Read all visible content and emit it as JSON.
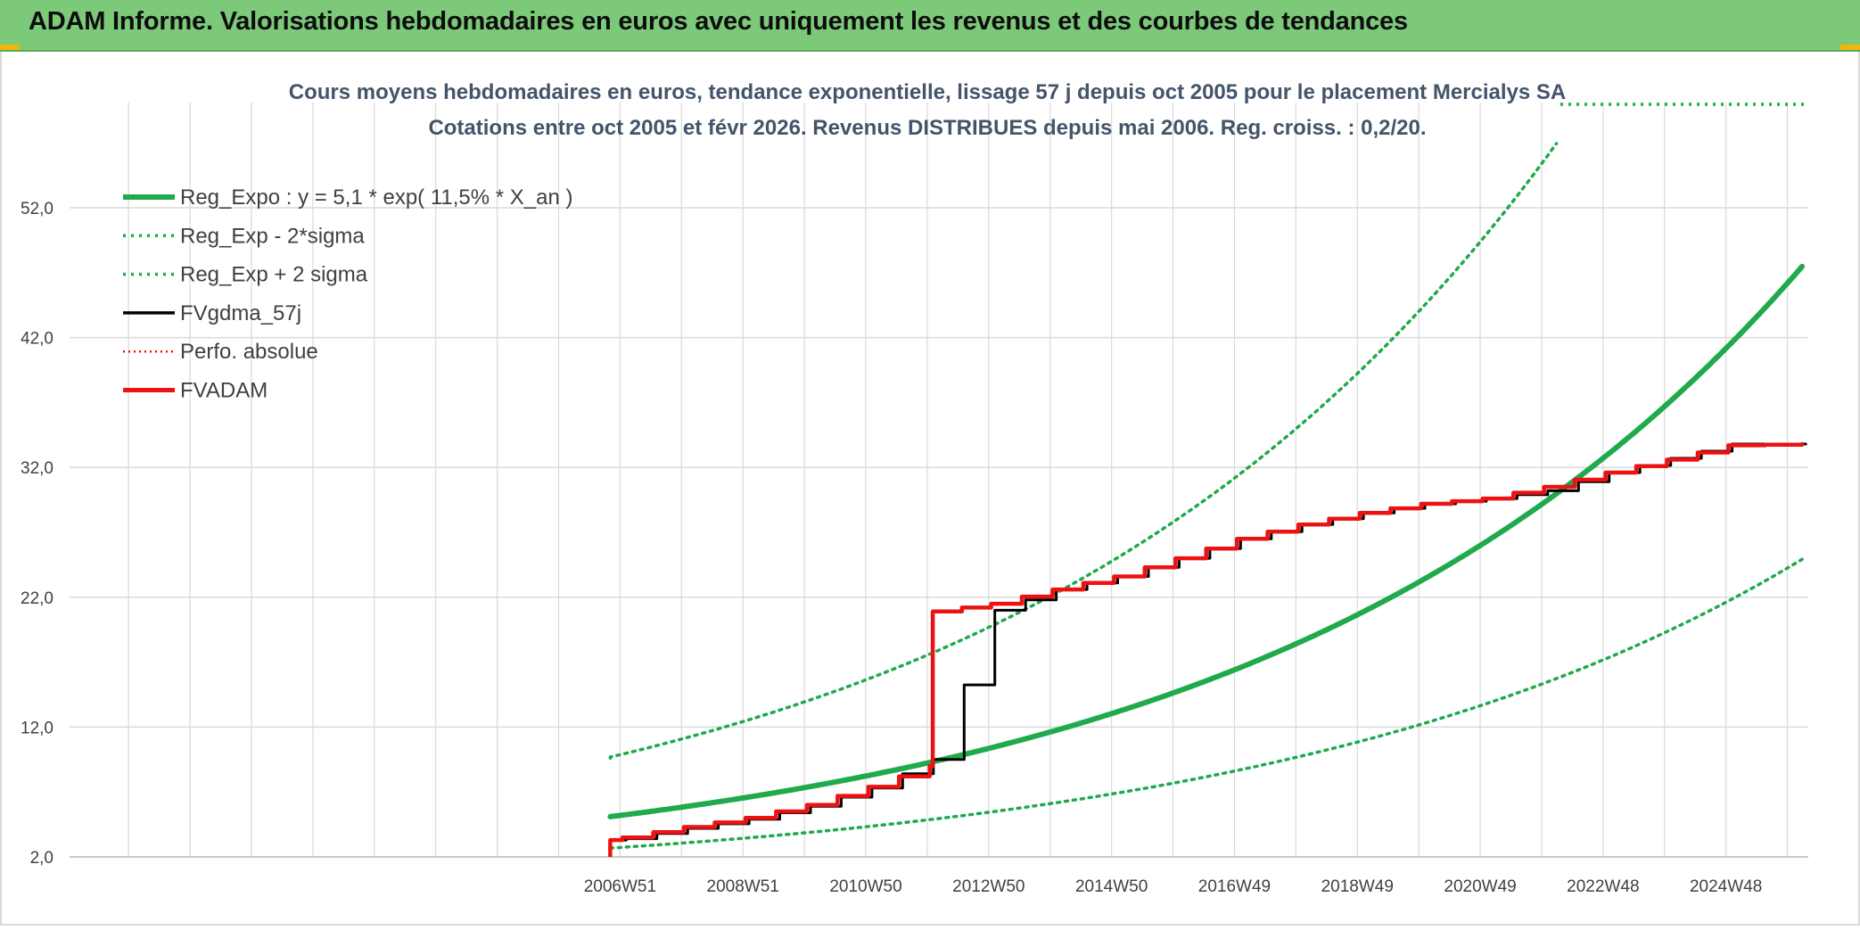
{
  "banner": {
    "title": "ADAM Informe. Valorisations hebdomadaires en euros avec uniquement les revenus et des courbes de tendances"
  },
  "colors": {
    "banner_bg": "#7cc97a",
    "reg_green": "#1faa4b",
    "fv_black": "#000000",
    "fvadam_red": "#ee1111",
    "grid": "#d9d9d9",
    "axis_text": "#404040",
    "title_text": "#44546a"
  },
  "chart_data": {
    "type": "line",
    "title": "Cours moyens hebdomadaires en euros, tendance exponentielle, lissage 57 j depuis oct 2005 pour le placement Mercialys SA",
    "subtitle": "Cotations entre oct 2005 et févr 2026. Revenus DISTRIBUES depuis mai 2006. Reg. croiss. : 0,2/20.",
    "xlabel": "",
    "ylabel": "",
    "ylim": [
      2.0,
      57.0
    ],
    "yticks": [
      "2,0",
      "12,0",
      "22,0",
      "32,0",
      "42,0",
      "52,0"
    ],
    "ytick_values": [
      2,
      12,
      22,
      32,
      42,
      52
    ],
    "xticks": [
      "2006W51",
      "2008W51",
      "2010W50",
      "2012W50",
      "2014W50",
      "2016W49",
      "2018W49",
      "2020W49",
      "2022W48",
      "2024W48"
    ],
    "xtick_values": [
      2006.96,
      2008.96,
      2010.96,
      2012.96,
      2014.96,
      2016.96,
      2018.96,
      2020.96,
      2022.96,
      2024.96
    ],
    "xlim": [
      1998.0,
      2026.3
    ],
    "grid": true,
    "legend_position": "top-left",
    "legend": [
      {
        "label": "Reg_Expo : y = 5,1 * exp( 11,5% *  X_an )",
        "style": "solid-thick-green"
      },
      {
        "label": "Reg_Exp - 2*sigma",
        "style": "dotted-green"
      },
      {
        "label": "Reg_Exp + 2 sigma",
        "style": "dotted-green"
      },
      {
        "label": "FVgdma_57j",
        "style": "solid-black"
      },
      {
        "label": "Perfo. absolue",
        "style": "dotted-red"
      },
      {
        "label": "FVADAM",
        "style": "solid-red"
      }
    ],
    "series": [
      {
        "name": "Reg_Expo : y = 5,1 * exp( 11,5% *  X_an )",
        "x": [
          2006.8,
          2008.0,
          2010.0,
          2012.0,
          2014.0,
          2016.0,
          2018.0,
          2020.0,
          2022.0,
          2024.0,
          2026.2
        ],
        "values": [
          5.1,
          5.8,
          7.3,
          9.2,
          11.6,
          14.6,
          18.4,
          23.2,
          29.2,
          36.8,
          53.8
        ]
      },
      {
        "name": "Reg_Exp - 2*sigma",
        "x": [
          2006.8,
          2008.0,
          2010.0,
          2012.0,
          2014.0,
          2016.0,
          2018.0,
          2020.0,
          2022.0,
          2024.0,
          2026.2
        ],
        "values": [
          2.7,
          3.1,
          3.9,
          5.0,
          6.3,
          8.0,
          10.2,
          12.9,
          16.4,
          20.9,
          28.2
        ]
      },
      {
        "name": "Reg_Exp + 2 sigma",
        "x": [
          2006.8,
          2008.0,
          2010.0,
          2011.0,
          2012.0,
          2013.0,
          2014.0,
          2015.0,
          2016.0,
          2017.0,
          2018.0,
          2019.0,
          2019.8
        ],
        "values": [
          9.6,
          11.0,
          13.9,
          15.6,
          17.5,
          19.6,
          22.0,
          24.7,
          27.8,
          31.2,
          35.1,
          39.4,
          57.0
        ]
      },
      {
        "name": "FVgdma_57j",
        "x": [
          2006.8,
          2007.0,
          2008.0,
          2009.0,
          2010.0,
          2011.0,
          2012.0,
          2013.0,
          2014.0,
          2015.0,
          2016.0,
          2017.0,
          2018.0,
          2019.0,
          2020.0,
          2021.0,
          2022.0,
          2023.0,
          2024.0,
          2025.0,
          2026.2
        ],
        "values": [
          3.3,
          3.4,
          4.2,
          4.9,
          5.9,
          7.3,
          9.5,
          21.0,
          22.6,
          23.6,
          25.0,
          26.5,
          27.6,
          28.5,
          29.2,
          29.6,
          30.2,
          31.6,
          32.7,
          33.8,
          33.8
        ]
      },
      {
        "name": "Perfo. absolue",
        "x": [],
        "values": []
      },
      {
        "name": "FVADAM",
        "x": [
          2006.8,
          2007.0,
          2008.0,
          2009.0,
          2010.0,
          2011.0,
          2012.0,
          2012.05,
          2013.0,
          2014.0,
          2015.0,
          2016.0,
          2017.0,
          2018.0,
          2019.0,
          2020.0,
          2021.0,
          2022.0,
          2023.0,
          2024.0,
          2025.0,
          2026.2
        ],
        "values": [
          3.3,
          3.5,
          4.3,
          5.0,
          6.0,
          7.4,
          9.0,
          20.9,
          21.5,
          22.6,
          23.6,
          25.0,
          26.5,
          27.6,
          28.5,
          29.2,
          29.6,
          30.5,
          31.6,
          32.6,
          33.7,
          33.8
        ]
      }
    ]
  }
}
